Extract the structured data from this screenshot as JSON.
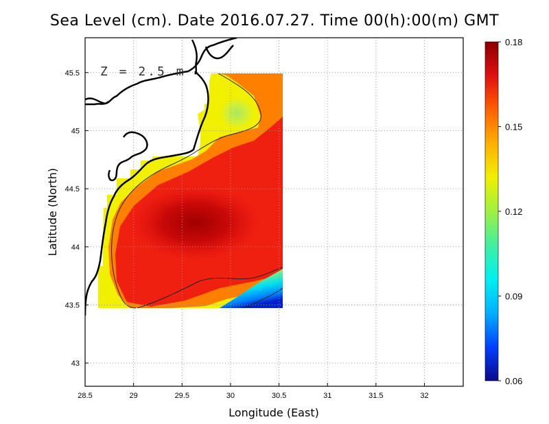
{
  "title": "Sea Level (cm). Date 2016.07.27. Time 00(h):00(m) GMT",
  "depth_label": "Z = 2.5 m",
  "x_axis": {
    "label": "Longitude (East)",
    "range": [
      28.5,
      32.4
    ],
    "ticks": [
      "28.5",
      "29",
      "29.5",
      "30",
      "30.5",
      "31",
      "31.5",
      "32"
    ]
  },
  "y_axis": {
    "label": "Latitude (North)",
    "range": [
      42.8,
      45.8
    ],
    "ticks": [
      "43",
      "43.5",
      "44",
      "44.5",
      "45",
      "45.5"
    ]
  },
  "colorbar": {
    "range": [
      0.06,
      0.18
    ],
    "ticks": [
      "0.06",
      "0.09",
      "0.12",
      "0.15",
      "0.18"
    ],
    "colors": [
      "#0a0a8a",
      "#0040ff",
      "#00b0ff",
      "#00f0f0",
      "#40f0a0",
      "#a0f040",
      "#f0f000",
      "#ffb000",
      "#ff6000",
      "#e01010",
      "#8a0000"
    ]
  },
  "grid": "dotted",
  "coastline_color": "#000000"
}
